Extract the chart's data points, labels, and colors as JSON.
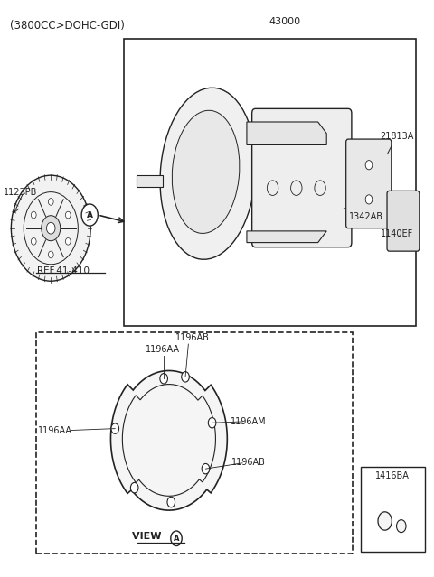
{
  "title": "(3800CC>DOHC-GDI)",
  "bg_color": "#ffffff",
  "line_color": "#222222",
  "text_color": "#222222",
  "part_number_43000": "43000",
  "part_number_21813A": "21813A",
  "part_number_1342AB": "1342AB",
  "part_number_1140EF": "1140EF",
  "part_number_1123PB": "1123PB",
  "ref_label": "REF.41-410",
  "part_number_1196AB_top": "1196AB",
  "part_number_1196AA_top": "1196AA",
  "part_number_1196AA_left": "1196AA",
  "part_number_1196AM": "1196AM",
  "part_number_1196AB_right": "1196AB",
  "part_number_1416BA": "1416BA",
  "view_label": "VIEW",
  "view_circle_label": "A"
}
